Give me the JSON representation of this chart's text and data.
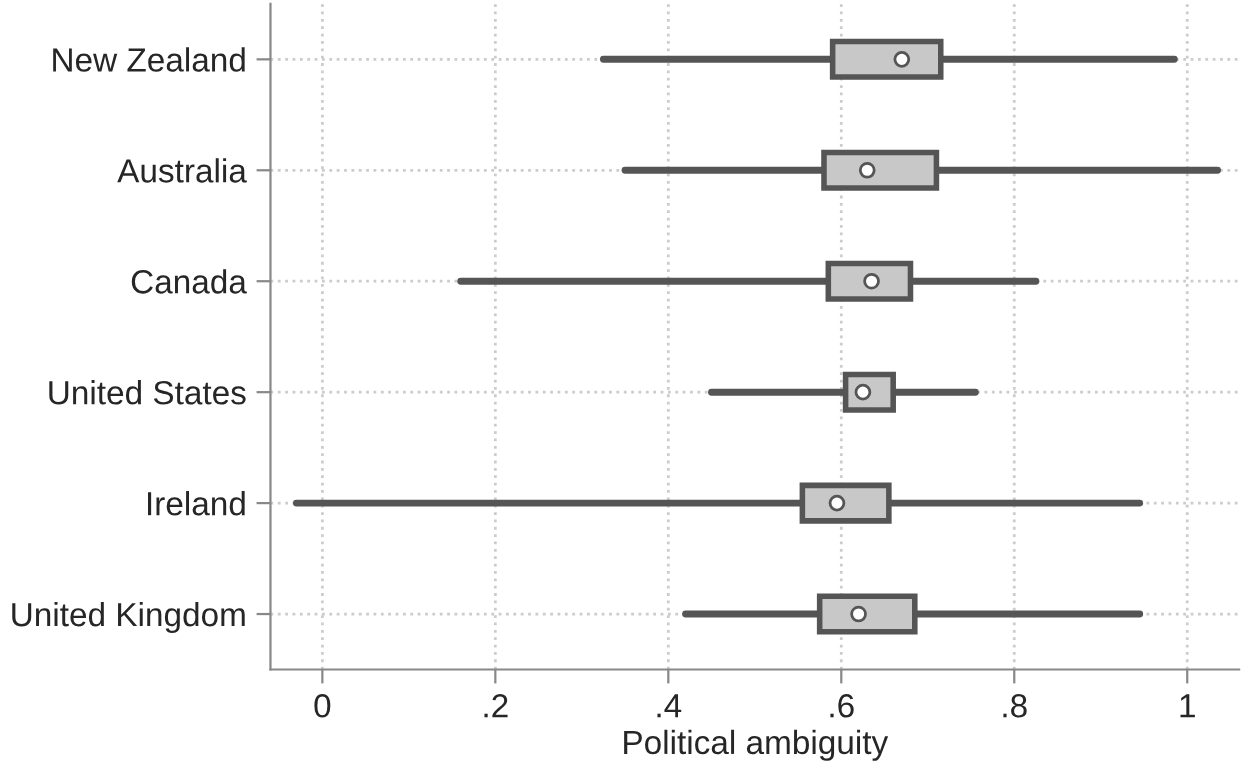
{
  "chart_data": {
    "type": "box",
    "orientation": "horizontal",
    "xlabel": "Political ambiguity",
    "categories": [
      "New Zealand",
      "Australia",
      "Canada",
      "United States",
      "Ireland",
      "United Kingdom"
    ],
    "boxes": [
      {
        "low": 0.325,
        "q1": 0.59,
        "median": 0.67,
        "q3": 0.715,
        "high": 0.985
      },
      {
        "low": 0.35,
        "q1": 0.58,
        "median": 0.63,
        "q3": 0.71,
        "high": 1.035
      },
      {
        "low": 0.16,
        "q1": 0.585,
        "median": 0.635,
        "q3": 0.68,
        "high": 0.825
      },
      {
        "low": 0.45,
        "q1": 0.605,
        "median": 0.625,
        "q3": 0.66,
        "high": 0.755
      },
      {
        "low": -0.03,
        "q1": 0.555,
        "median": 0.595,
        "q3": 0.655,
        "high": 0.945
      },
      {
        "low": 0.42,
        "q1": 0.575,
        "median": 0.62,
        "q3": 0.685,
        "high": 0.945
      }
    ],
    "color": "#c8c8c8",
    "xlim": [
      -0.06,
      1.06
    ],
    "xticks": [
      0,
      {
        "value": 0.2,
        "label": ".2"
      },
      {
        "value": 0.4,
        "label": ".4"
      },
      {
        "value": 0.6,
        "label": ".6"
      },
      {
        "value": 0.8,
        "label": ".8"
      },
      1
    ],
    "grid": true
  }
}
